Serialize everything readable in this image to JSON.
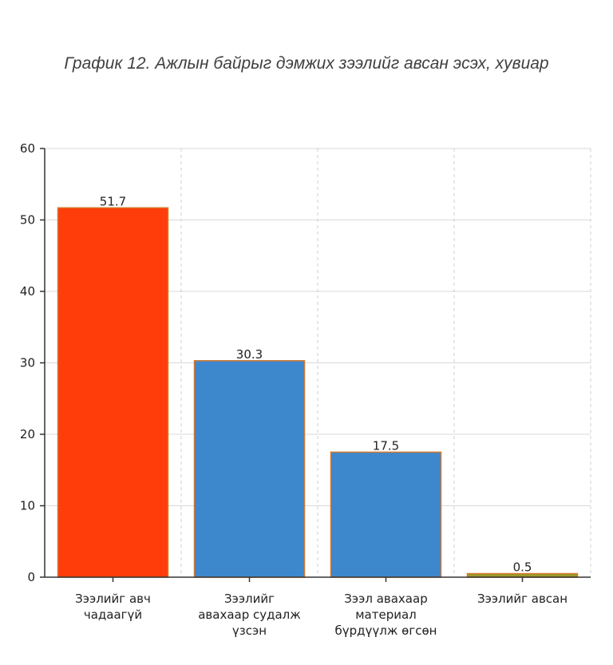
{
  "chart_data": {
    "type": "bar",
    "title": "График 12. Ажлын байрыг дэмжих зээлийг авсан эсэх, хувиар",
    "categories": [
      [
        "Зээлийг авч",
        "чадаагүй"
      ],
      [
        "Зээлийг",
        "авахаар судалж",
        "үзсэн"
      ],
      [
        "Зээл авахаар",
        "материал",
        "бүрдүүлж өгсөн"
      ],
      [
        "Зээлийг авсан"
      ]
    ],
    "values": [
      51.7,
      30.3,
      17.5,
      0.5
    ],
    "data_labels": [
      "51.7",
      "30.3",
      "17.5",
      "0.5"
    ],
    "bar_colors": [
      "#ff3d0a",
      "#3d87cd",
      "#3d87cd",
      "#9a9a2a"
    ],
    "bar_edge_color": "#d4782c",
    "ylim": [
      0,
      60
    ],
    "yticks": [
      0,
      10,
      20,
      30,
      40,
      50,
      60
    ],
    "grid": true,
    "xlabel": "",
    "ylabel": ""
  }
}
